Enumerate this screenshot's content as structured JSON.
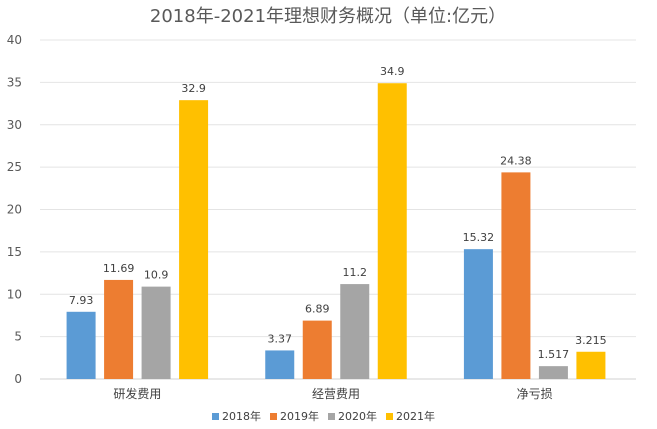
{
  "chart_data": {
    "type": "bar",
    "title": "2018年-2021年理想财务概况（单位:亿元）",
    "categories": [
      "研发费用",
      "经营费用",
      "净亏损"
    ],
    "series": [
      {
        "name": "2018年",
        "color": "#5B9BD5",
        "values": [
          7.93,
          3.37,
          15.32
        ],
        "labels": [
          "7.93",
          "3.37",
          "15.32"
        ]
      },
      {
        "name": "2019年",
        "color": "#ED7D31",
        "values": [
          11.69,
          6.89,
          24.38
        ],
        "labels": [
          "11.69",
          "6.89",
          "24.38"
        ]
      },
      {
        "name": "2020年",
        "color": "#A5A5A5",
        "values": [
          10.9,
          11.2,
          1.517
        ],
        "labels": [
          "10.9",
          "11.2",
          "1.517"
        ]
      },
      {
        "name": "2021年",
        "color": "#FFC000",
        "values": [
          32.9,
          34.9,
          3.215
        ],
        "labels": [
          "32.9",
          "34.9",
          "3.215"
        ]
      }
    ],
    "ylim": [
      0,
      40
    ],
    "yticks": [
      "0",
      "5",
      "10",
      "15",
      "20",
      "25",
      "30",
      "35",
      "40"
    ],
    "grid": true,
    "legend_position": "bottom"
  }
}
